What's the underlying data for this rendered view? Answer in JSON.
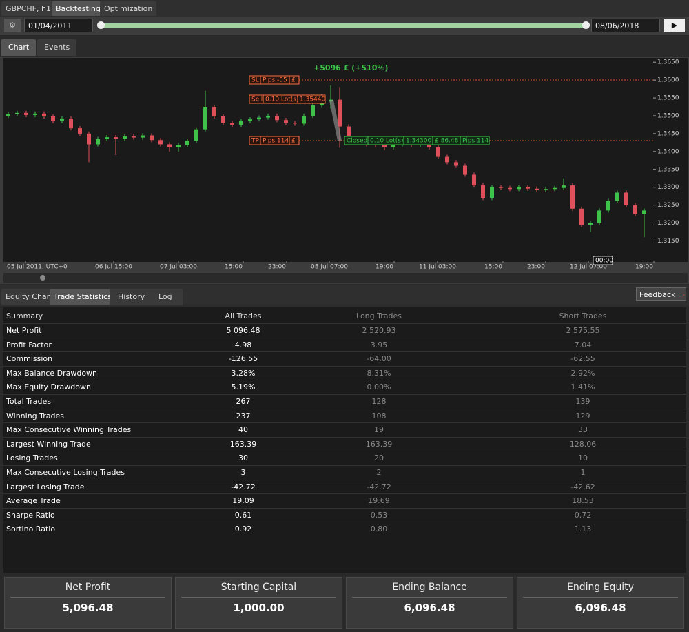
{
  "header": {
    "tabs": [
      "GBPCHF, h1",
      "Backtesting",
      "Optimization"
    ],
    "start_date": "01/04/2011",
    "end_date": "08/06/2018"
  },
  "chart_tabs": [
    "Chart",
    "Events"
  ],
  "chart": {
    "type": "candlestick",
    "result": "+5096 £ (+510%)",
    "ylim": [
      1.3095,
      1.366
    ],
    "yticks": [
      {
        "value": 1.365,
        "label": "1.3650"
      },
      {
        "value": 1.36,
        "label": "1.3600"
      },
      {
        "value": 1.355,
        "label": "1.3550"
      },
      {
        "value": 1.35,
        "label": "1.3500"
      },
      {
        "value": 1.345,
        "label": "1.3450"
      },
      {
        "value": 1.34,
        "label": "1.3400"
      },
      {
        "value": 1.335,
        "label": "1.3350"
      },
      {
        "value": 1.33,
        "label": "1.3300"
      },
      {
        "value": 1.325,
        "label": "1.3250"
      },
      {
        "value": 1.32,
        "label": "1.3200"
      },
      {
        "value": 1.315,
        "label": "1.3150"
      }
    ],
    "xlabels": [
      "05 Jul 2011, UTC+0",
      "06 Jul 15:00",
      "07 Jul 03:00",
      "15:00",
      "23:00",
      "08 Jul 07:00",
      "19:00",
      "11 Jul 03:00",
      "15:00",
      "23:00",
      "12 Jul 07:00",
      "19:00"
    ],
    "cursor_time": "00:00",
    "sl": {
      "tag": "SL",
      "pips": "Pips -55",
      "currency": "£"
    },
    "tp": {
      "tag": "TP",
      "pips": "Pips 114",
      "currency": "£"
    },
    "entry": {
      "tag": "Sell",
      "lots": "0.10 Lot(s)",
      "price": {
        "value": 1.3544,
        "label": "1.35440"
      }
    },
    "exit": {
      "tag": "Closed",
      "lots": "0.10 Lot(s)",
      "price": {
        "value": 1.343,
        "label": "1.34300"
      },
      "profit": "£ 86.48",
      "pips": "Pips 114"
    },
    "up_color": "#3ec24a",
    "down_color": "#e0505b",
    "candles": [
      [
        1.35,
        1.3511,
        1.3494,
        1.3505
      ],
      [
        1.3505,
        1.3514,
        1.3499,
        1.3508
      ],
      [
        1.3508,
        1.3514,
        1.3496,
        1.3502
      ],
      [
        1.3502,
        1.3512,
        1.3496,
        1.3506
      ],
      [
        1.3506,
        1.3512,
        1.3492,
        1.3498
      ],
      [
        1.3498,
        1.3504,
        1.3479,
        1.3485
      ],
      [
        1.3485,
        1.3498,
        1.3479,
        1.3492
      ],
      [
        1.3492,
        1.3498,
        1.3459,
        1.3465
      ],
      [
        1.3465,
        1.3471,
        1.3444,
        1.345
      ],
      [
        1.345,
        1.3456,
        1.337,
        1.342
      ],
      [
        1.342,
        1.3441,
        1.3414,
        1.3435
      ],
      [
        1.3435,
        1.3446,
        1.3429,
        1.344
      ],
      [
        1.344,
        1.3446,
        1.339,
        1.3436
      ],
      [
        1.3436,
        1.3448,
        1.343,
        1.3442
      ],
      [
        1.3442,
        1.3448,
        1.3433,
        1.3439
      ],
      [
        1.3439,
        1.3451,
        1.3433,
        1.3445
      ],
      [
        1.3445,
        1.3451,
        1.3426,
        1.3432
      ],
      [
        1.3432,
        1.3438,
        1.3414,
        1.342
      ],
      [
        1.342,
        1.3426,
        1.34,
        1.3412
      ],
      [
        1.3412,
        1.3424,
        1.34,
        1.3418
      ],
      [
        1.3418,
        1.3436,
        1.3412,
        1.343
      ],
      [
        1.343,
        1.3468,
        1.3424,
        1.3462
      ],
      [
        1.3462,
        1.357,
        1.3456,
        1.3525
      ],
      [
        1.3525,
        1.3531,
        1.3492,
        1.3498
      ],
      [
        1.3498,
        1.3504,
        1.3474,
        1.348
      ],
      [
        1.348,
        1.3486,
        1.3469,
        1.3475
      ],
      [
        1.3475,
        1.3491,
        1.3469,
        1.3485
      ],
      [
        1.3485,
        1.3496,
        1.3479,
        1.349
      ],
      [
        1.349,
        1.3501,
        1.3484,
        1.3495
      ],
      [
        1.3495,
        1.3506,
        1.3489,
        1.35
      ],
      [
        1.35,
        1.3506,
        1.3482,
        1.3488
      ],
      [
        1.3488,
        1.3494,
        1.3474,
        1.348
      ],
      [
        1.348,
        1.3486,
        1.3472,
        1.3478
      ],
      [
        1.3478,
        1.3506,
        1.3472,
        1.35
      ],
      [
        1.35,
        1.3536,
        1.3494,
        1.353
      ],
      [
        1.353,
        1.356,
        1.3524,
        1.354
      ],
      [
        1.354,
        1.3585,
        1.352,
        1.3545
      ],
      [
        1.3545,
        1.358,
        1.341,
        1.347
      ],
      [
        1.347,
        1.3476,
        1.3424,
        1.343
      ],
      [
        1.343,
        1.3436,
        1.3419,
        1.3425
      ],
      [
        1.3425,
        1.3431,
        1.3414,
        1.342
      ],
      [
        1.342,
        1.3426,
        1.3412,
        1.3418
      ],
      [
        1.3418,
        1.3424,
        1.3404,
        1.3412
      ],
      [
        1.3412,
        1.3426,
        1.3406,
        1.342
      ],
      [
        1.342,
        1.3428,
        1.3414,
        1.3422
      ],
      [
        1.3422,
        1.3428,
        1.3412,
        1.3418
      ],
      [
        1.3418,
        1.3431,
        1.3412,
        1.3425
      ],
      [
        1.3425,
        1.3431,
        1.3406,
        1.3412
      ],
      [
        1.3412,
        1.3418,
        1.3379,
        1.3385
      ],
      [
        1.3385,
        1.3391,
        1.3364,
        1.337
      ],
      [
        1.337,
        1.3376,
        1.3354,
        1.336
      ],
      [
        1.336,
        1.3366,
        1.3329,
        1.3335
      ],
      [
        1.3335,
        1.3341,
        1.3299,
        1.3305
      ],
      [
        1.3305,
        1.3311,
        1.3264,
        1.327
      ],
      [
        1.327,
        1.3306,
        1.3264,
        1.33
      ],
      [
        1.33,
        1.3306,
        1.3292,
        1.3298
      ],
      [
        1.3298,
        1.3304,
        1.3289,
        1.3295
      ],
      [
        1.3295,
        1.3306,
        1.3289,
        1.33
      ],
      [
        1.33,
        1.3306,
        1.329,
        1.3296
      ],
      [
        1.3296,
        1.3302,
        1.3286,
        1.3292
      ],
      [
        1.3292,
        1.3301,
        1.3286,
        1.3295
      ],
      [
        1.3295,
        1.3304,
        1.3289,
        1.3298
      ],
      [
        1.3298,
        1.3325,
        1.3292,
        1.3305
      ],
      [
        1.3305,
        1.3311,
        1.3234,
        1.324
      ],
      [
        1.324,
        1.3246,
        1.3189,
        1.3195
      ],
      [
        1.3195,
        1.3206,
        1.3175,
        1.32
      ],
      [
        1.32,
        1.3241,
        1.3194,
        1.3235
      ],
      [
        1.3235,
        1.3268,
        1.3229,
        1.3262
      ],
      [
        1.3262,
        1.3291,
        1.3256,
        1.3285
      ],
      [
        1.3285,
        1.3291,
        1.3244,
        1.325
      ],
      [
        1.325,
        1.3256,
        1.3219,
        1.3225
      ],
      [
        1.3225,
        1.3241,
        1.316,
        1.3235
      ]
    ]
  },
  "bottom_tabs": [
    "Equity Chart",
    "Trade Statistics",
    "History",
    "Log"
  ],
  "feedback": "Feedback",
  "table": {
    "columns": [
      "Summary",
      "All Trades",
      "Long Trades",
      "Short Trades"
    ],
    "rows": [
      [
        "Net Profit",
        "5 096.48",
        "2 520.93",
        "2 575.55"
      ],
      [
        "Profit Factor",
        "4.98",
        "3.95",
        "7.04"
      ],
      [
        "Commission",
        "-126.55",
        "-64.00",
        "-62.55"
      ],
      [
        "Max Balance Drawdown",
        "3.28%",
        "8.31%",
        "2.92%"
      ],
      [
        "Max Equity Drawdown",
        "5.19%",
        "0.00%",
        "1.41%"
      ],
      [
        "Total Trades",
        "267",
        "128",
        "139"
      ],
      [
        "Winning Trades",
        "237",
        "108",
        "129"
      ],
      [
        "Max Consecutive Winning Trades",
        "40",
        "19",
        "33"
      ],
      [
        "Largest Winning Trade",
        "163.39",
        "163.39",
        "128.06"
      ],
      [
        "Losing Trades",
        "30",
        "20",
        "10"
      ],
      [
        "Max Consecutive Losing Trades",
        "3",
        "2",
        "1"
      ],
      [
        "Largest Losing Trade",
        "-42.72",
        "-42.72",
        "-42.62"
      ],
      [
        "Average Trade",
        "19.09",
        "19.69",
        "18.53"
      ],
      [
        "Sharpe Ratio",
        "0.61",
        "0.53",
        "0.72"
      ],
      [
        "Sortino Ratio",
        "0.92",
        "0.80",
        "1.13"
      ]
    ]
  },
  "cards": [
    {
      "label": "Net Profit",
      "value": "5,096.48"
    },
    {
      "label": "Starting Capital",
      "value": "1,000.00"
    },
    {
      "label": "Ending Balance",
      "value": "6,096.48"
    },
    {
      "label": "Ending Equity",
      "value": "6,096.48"
    }
  ]
}
